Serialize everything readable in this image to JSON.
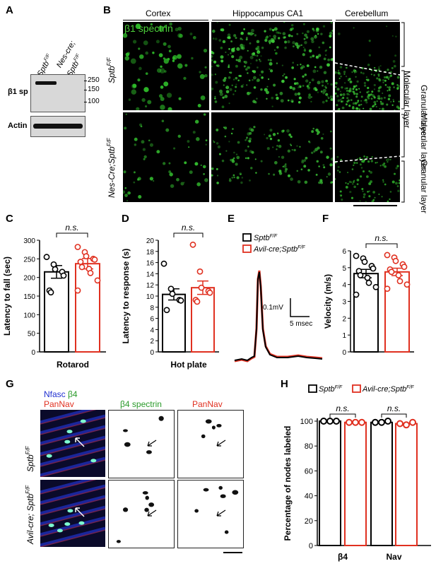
{
  "panel_letters": [
    "A",
    "B",
    "C",
    "D",
    "E",
    "F",
    "G",
    "H"
  ],
  "panelA": {
    "lane1": "Sptb",
    "lane1_sup": "F/F",
    "lane2_line1": "Nes-cre;",
    "lane2_line2": "Sptb",
    "lane2_sup": "F/F",
    "row1_label": "β1 sp",
    "row2_label": "Actin",
    "markers": [
      "250",
      "150",
      "100"
    ]
  },
  "panelB": {
    "columns": [
      "Cortex",
      "Hippocampus CA1",
      "Cerebellum"
    ],
    "inset_label": "β1 spectrin",
    "row1_label": "Sptb",
    "row1_sup": "F/F",
    "row2_label": "Nes-Cre;Sptb",
    "row2_sup": "F/F",
    "right_labels": [
      "Molecular layer",
      "Granular layer",
      "Molecular layer",
      "Granular layer"
    ]
  },
  "panelE": {
    "legend": [
      {
        "name": "Sptb",
        "sup": "F/F",
        "color": "#000000"
      },
      {
        "name": "Avil-cre;Sptb",
        "sup": "F/F",
        "color": "#e03020"
      }
    ],
    "scale_y": "0.1mV",
    "scale_x": "5 msec"
  },
  "panelG": {
    "merge_label_line1_a": "Nfasc",
    "merge_label_line1_b": "β4",
    "merge_label_line2": "PanNav",
    "col2": "β4 spectrin",
    "col3": "PanNav",
    "row1_label": "Sptb",
    "row1_sup": "F/F",
    "row2_label": "Avil-cre; Sptb",
    "row2_sup": "F/F"
  },
  "colors": {
    "control": "#000000",
    "cko": "#e03020"
  },
  "chart_data": [
    {
      "panel": "C",
      "type": "bar",
      "xlabel": "Rotarod",
      "ylabel": "Latency to fall (sec)",
      "ylim": [
        0,
        300
      ],
      "yticks": [
        "0",
        "50",
        "100",
        "150",
        "200",
        "250",
        "300"
      ],
      "significance": "n.s.",
      "series": [
        {
          "name": "Sptb F/F",
          "mean": 215,
          "sem": 17,
          "points": [
            255,
            235,
            222,
            215,
            205,
            165,
            160
          ]
        },
        {
          "name": "Avil-cre;Sptb F/F",
          "mean": 237,
          "sem": 14,
          "points": [
            282,
            268,
            257,
            250,
            248,
            242,
            228,
            223,
            212,
            192,
            165
          ]
        }
      ]
    },
    {
      "panel": "D",
      "type": "bar",
      "xlabel": "Hot plate",
      "ylabel": "Latency to response (s)",
      "ylim": [
        0,
        20
      ],
      "yticks": [
        "0",
        "2",
        "4",
        "6",
        "8",
        "10",
        "12",
        "14",
        "16",
        "18",
        "20"
      ],
      "significance": "n.s.",
      "series": [
        {
          "name": "Sptb F/F",
          "mean": 10.3,
          "sem": 1.0,
          "points": [
            15.8,
            11.3,
            10.4,
            9.3,
            9.2,
            7.5
          ]
        },
        {
          "name": "Avil-cre;Sptb F/F",
          "mean": 11.5,
          "sem": 1.2,
          "points": [
            19.2,
            14.4,
            11.5,
            10.9,
            10.6,
            9.3,
            9.0
          ]
        }
      ]
    },
    {
      "panel": "F",
      "type": "bar",
      "xlabel": "",
      "ylabel": "Velocity (m/s)",
      "ylim": [
        0,
        6
      ],
      "yticks": [
        "0",
        "1",
        "2",
        "3",
        "4",
        "5",
        "6"
      ],
      "significance": "n.s.",
      "series": [
        {
          "name": "Sptb F/F",
          "mean": 4.65,
          "sem": 0.25,
          "points": [
            5.7,
            5.55,
            5.35,
            5.1,
            4.95,
            4.8,
            4.55,
            4.4,
            4.1,
            3.85,
            3.4
          ]
        },
        {
          "name": "Avil-cre;Sptb F/F",
          "mean": 4.75,
          "sem": 0.22,
          "points": [
            5.75,
            5.6,
            5.4,
            5.2,
            5.05,
            4.9,
            4.75,
            4.55,
            4.2,
            4.0,
            3.75
          ]
        }
      ]
    },
    {
      "panel": "H",
      "type": "bar",
      "ylabel": "Percentage of nodes labeled",
      "ylim": [
        0,
        100
      ],
      "yticks": [
        "0",
        "20",
        "40",
        "60",
        "80",
        "100"
      ],
      "categories": [
        "β4",
        "Nav"
      ],
      "significance": [
        "n.s.",
        "n.s."
      ],
      "legend": [
        {
          "name": "Sptb",
          "sup": "F/F"
        },
        {
          "name": "Avil-cre;Sptb",
          "sup": "F/F"
        }
      ],
      "series": [
        {
          "name": "Sptb F/F",
          "values": [
            100,
            99
          ],
          "points": [
            [
              100,
              100,
              100
            ],
            [
              99,
              99,
              100
            ]
          ]
        },
        {
          "name": "Avil-cre;Sptb F/F",
          "values": [
            99,
            98
          ],
          "points": [
            [
              99,
              99,
              99
            ],
            [
              98,
              97,
              99
            ]
          ]
        }
      ]
    }
  ]
}
